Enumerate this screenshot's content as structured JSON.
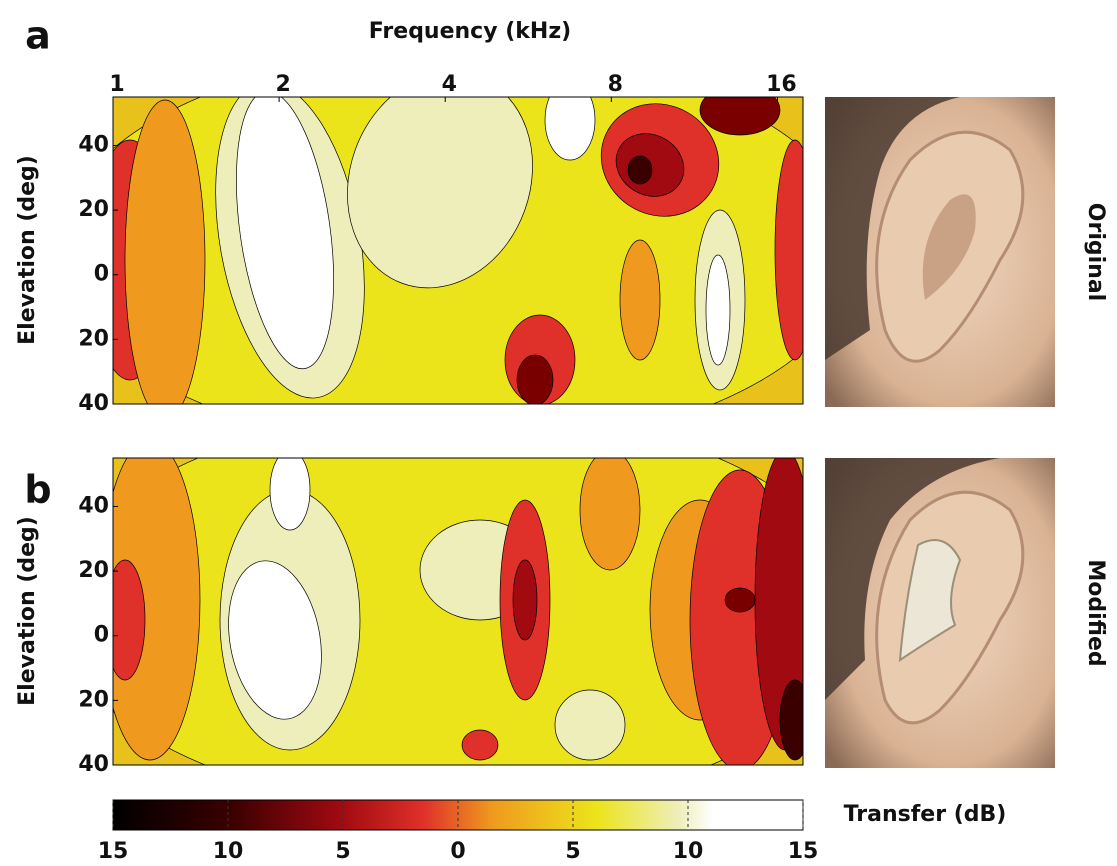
{
  "chart_data": [
    {
      "type": "contour",
      "panel": "a",
      "x_label": "Frequency (kHz)",
      "y_label": "Elevation (deg)",
      "side_label": "Original",
      "xscale": "log",
      "xlim": [
        1,
        17.8
      ],
      "xticks": [
        1,
        2,
        4,
        8,
        16
      ],
      "ylim": [
        -40,
        55
      ],
      "yticks": [
        {
          "value": -40,
          "label": "40"
        },
        {
          "value": -20,
          "label": "20"
        },
        0,
        20,
        40
      ]
    },
    {
      "type": "contour",
      "panel": "b",
      "y_label": "Elevation (deg)",
      "side_label": "Modified",
      "xscale": "log",
      "xlim": [
        1,
        17.8
      ],
      "ylim": [
        -40,
        55
      ],
      "yticks": [
        {
          "value": -40,
          "label": "40"
        },
        {
          "value": -20,
          "label": "20"
        },
        0,
        20,
        40
      ]
    },
    {
      "type": "colorbar",
      "title": "Transfer (dB)",
      "xlim": [
        -15,
        15
      ],
      "xticks": [
        {
          "value": -15,
          "label": "15"
        },
        {
          "value": -10,
          "label": "10"
        },
        {
          "value": -5,
          "label": "5"
        },
        0,
        5,
        10,
        15
      ]
    }
  ]
}
